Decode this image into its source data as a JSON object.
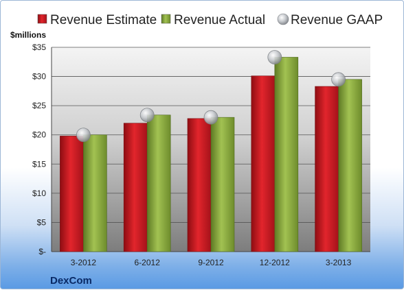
{
  "chart_data": {
    "type": "bar",
    "title": "",
    "ylabel": "$millions",
    "xlabel": "",
    "brand": "DexCom",
    "categories": [
      "3-2012",
      "6-2012",
      "9-2012",
      "12-2012",
      "3-2013"
    ],
    "series": [
      {
        "name": "Revenue Estimate",
        "values": [
          19.8,
          22.0,
          22.8,
          30.1,
          28.3
        ],
        "color": "#c0141b",
        "kind": "bar"
      },
      {
        "name": "Revenue Actual",
        "values": [
          20.0,
          23.4,
          23.0,
          33.3,
          29.5
        ],
        "color": "#86a63a",
        "kind": "bar"
      },
      {
        "name": "Revenue GAAP",
        "values": [
          20.0,
          23.4,
          23.0,
          33.3,
          29.5
        ],
        "color": "#b0b4b8",
        "kind": "marker"
      }
    ],
    "ylim": [
      0,
      35
    ],
    "yticks": [
      0,
      5,
      10,
      15,
      20,
      25,
      30,
      35
    ],
    "ytick_labels": [
      "$-",
      "$5",
      "$10",
      "$15",
      "$20",
      "$25",
      "$30",
      "$35"
    ],
    "grid": true,
    "legend_position": "top"
  }
}
